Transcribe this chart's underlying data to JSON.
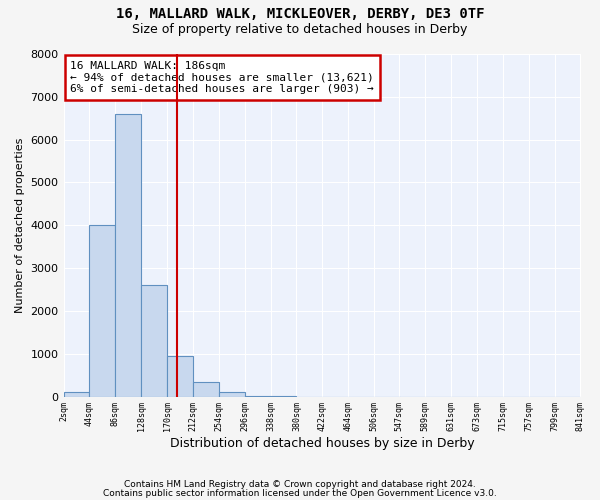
{
  "title1": "16, MALLARD WALK, MICKLEOVER, DERBY, DE3 0TF",
  "title2": "Size of property relative to detached houses in Derby",
  "xlabel": "Distribution of detached houses by size in Derby",
  "ylabel": "Number of detached properties",
  "bar_color": "#c8d8ee",
  "bar_edge_color": "#6090c0",
  "vline_value": 186,
  "vline_color": "#cc0000",
  "annotation_text": "16 MALLARD WALK: 186sqm\n← 94% of detached houses are smaller (13,621)\n6% of semi-detached houses are larger (903) →",
  "annotation_box_color": "#cc0000",
  "footer1": "Contains HM Land Registry data © Crown copyright and database right 2024.",
  "footer2": "Contains public sector information licensed under the Open Government Licence v3.0.",
  "bin_edges": [
    2,
    44,
    86,
    128,
    170,
    212,
    254,
    296,
    338,
    380,
    422,
    464,
    506,
    547,
    589,
    631,
    673,
    715,
    757,
    799,
    841
  ],
  "bin_counts": [
    100,
    4000,
    6600,
    2600,
    950,
    340,
    100,
    20,
    5,
    0,
    0,
    0,
    0,
    0,
    0,
    0,
    0,
    0,
    0,
    0
  ],
  "ylim": [
    0,
    8000
  ],
  "yticks": [
    0,
    1000,
    2000,
    3000,
    4000,
    5000,
    6000,
    7000,
    8000
  ],
  "bg_color": "#edf2fc",
  "grid_color": "#ffffff",
  "title1_fontsize": 10,
  "title2_fontsize": 9,
  "fig_bg": "#f5f5f5"
}
